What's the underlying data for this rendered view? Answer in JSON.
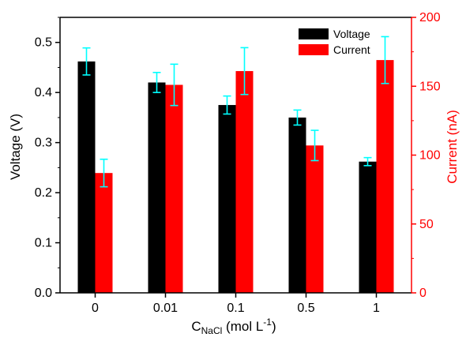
{
  "chart_data": {
    "type": "bar",
    "categories": [
      "0",
      "0.01",
      "0.1",
      "0.5",
      "1"
    ],
    "series": [
      {
        "name": "Voltage",
        "axis": "left",
        "color": "#000000",
        "values": [
          0.462,
          0.42,
          0.375,
          0.35,
          0.262
        ],
        "errors": [
          0.027,
          0.02,
          0.018,
          0.015,
          0.008
        ]
      },
      {
        "name": "Current",
        "axis": "right",
        "color": "#ff0000",
        "values": [
          87,
          151,
          161,
          107,
          169
        ],
        "errors": [
          10,
          15,
          17,
          11,
          17
        ]
      }
    ],
    "error_bar_color": "#00ffff",
    "ylabel": "Voltage (V)",
    "ylim": [
      0,
      0.55
    ],
    "yticks": [
      "0.0",
      "0.1",
      "0.2",
      "0.3",
      "0.4",
      "0.5"
    ],
    "ylabel_right": "Current (nA)",
    "ylim_right": [
      0,
      200
    ],
    "yticks_right": [
      "0",
      "50",
      "100",
      "150",
      "200"
    ],
    "xlabel": {
      "main": "C",
      "subscript": "NaCl",
      "unit_prefix": " (mol L",
      "superscript": "-1",
      "unit_suffix": ")"
    },
    "legend_position": "top-right",
    "grid": false
  }
}
